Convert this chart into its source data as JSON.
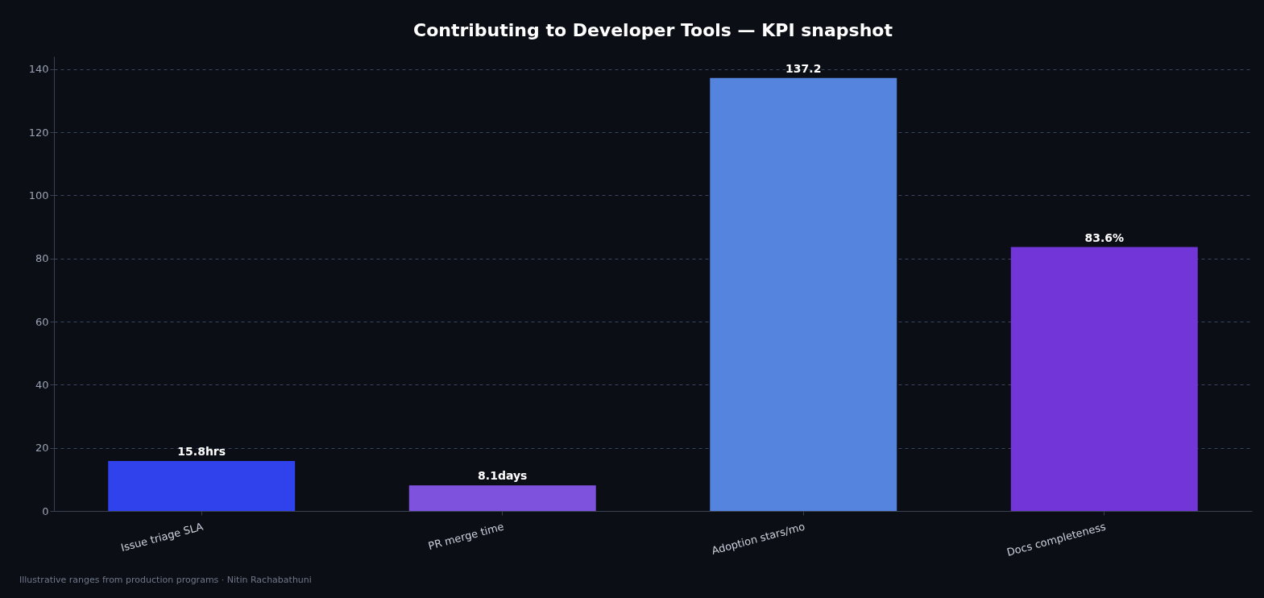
{
  "chart_data": {
    "type": "bar",
    "title": "Contributing to Developer Tools — KPI snapshot",
    "categories": [
      "Issue triage SLA",
      "PR merge time",
      "Adoption stars/mo",
      "Docs completeness"
    ],
    "values": [
      15.8,
      8.1,
      137.2,
      83.6
    ],
    "colors": [
      "#2f42ec",
      "#7f52dd",
      "#5584df",
      "#7236d8"
    ],
    "value_labels": [
      "15.8hrs",
      "8.1days",
      "137.2",
      "83.6%"
    ],
    "ylim": [
      0,
      144
    ],
    "yticks": [
      0,
      20,
      40,
      60,
      80,
      100,
      120,
      140
    ],
    "grid": "y",
    "annotations": [
      "Illustrative ranges from production programs · Nitin Rachabathuni"
    ]
  }
}
